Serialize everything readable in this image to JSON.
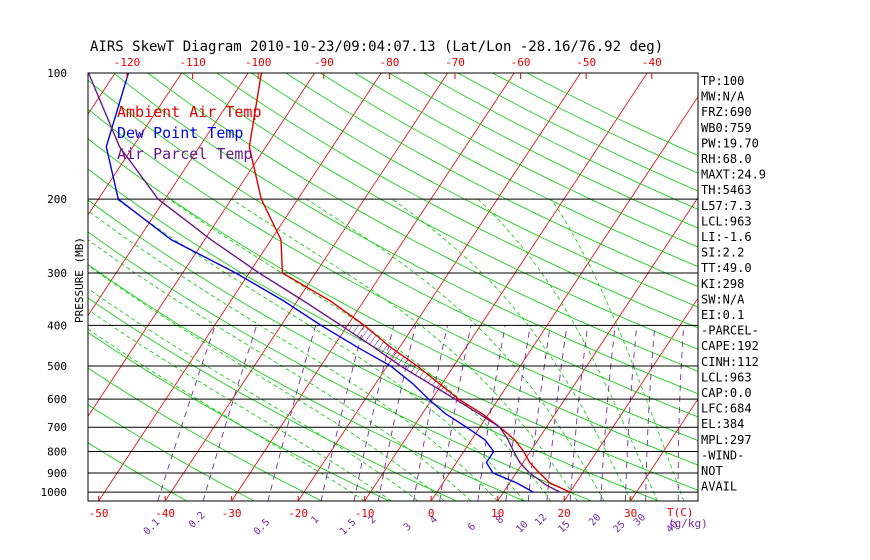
{
  "title": "AIRS SkewT Diagram 2010-10-23/09:04:07.13 (Lat/Lon -28.16/76.92 deg)",
  "legend": [
    {
      "label": "Ambient Air Temp",
      "color": "#e00000"
    },
    {
      "label": "Dew Point Temp",
      "color": "#0000e0"
    },
    {
      "label": "Air Parcel Temp",
      "color": "#6a1a8a"
    }
  ],
  "colors": {
    "ambient": "#e00000",
    "dewpoint": "#0000e0",
    "parcel": "#6a1a8a",
    "isotherm": "#e00000",
    "dry_adiabat": "#00cc00",
    "moist_adiabat": "#00cc00",
    "mixing_ratio": "#7a2aa0",
    "axis": "#000000",
    "tick_top": "#e00000",
    "tick_bottom": "#e00000",
    "tick_mixing": "#7a2aa0"
  },
  "chart_data": {
    "type": "line",
    "title": "AIRS SkewT Diagram 2010-10-23/09:04:07.13 (Lat/Lon -28.16/76.92 deg)",
    "ylabel": "PRESSURE (MB)",
    "xlabel_bottom_unit": "T(C)",
    "mixing_unit": "(g/kg)",
    "y_scale": "log",
    "ylim": [
      1050,
      100
    ],
    "pressure_ticks": [
      100,
      200,
      300,
      400,
      500,
      600,
      700,
      800,
      900,
      1000
    ],
    "bottom_temp_ticks": [
      "-50",
      "-40",
      "-30",
      "-20",
      "-10",
      "0",
      "10",
      "20",
      "30"
    ],
    "top_temp_ticks": [
      "-120",
      "-110",
      "-100",
      "-90",
      "-80",
      "-70",
      "-60",
      "-50",
      "-40"
    ],
    "mixing_ratio_ticks": [
      "0.1",
      "0.2",
      "0.5",
      "1",
      "1.5",
      "2",
      "3",
      "4",
      "6",
      "8",
      "10",
      "12",
      "15",
      "20",
      "25",
      "30",
      "40"
    ],
    "series": [
      {
        "name": "Ambient Air Temp",
        "key": "ambient",
        "points": [
          [
            1000,
            20.0
          ],
          [
            950,
            16.0
          ],
          [
            900,
            13.5
          ],
          [
            850,
            11.0
          ],
          [
            800,
            9.0
          ],
          [
            750,
            6.5
          ],
          [
            700,
            3.0
          ],
          [
            650,
            -1.0
          ],
          [
            600,
            -6.0
          ],
          [
            550,
            -10.5
          ],
          [
            500,
            -15.5
          ],
          [
            450,
            -21.5
          ],
          [
            400,
            -27.5
          ],
          [
            350,
            -35.0
          ],
          [
            300,
            -45.0
          ],
          [
            250,
            -48.5
          ],
          [
            200,
            -55.5
          ],
          [
            150,
            -62.5
          ],
          [
            100,
            -68.0
          ]
        ]
      },
      {
        "name": "Dew Point Temp",
        "key": "dewpoint",
        "points": [
          [
            1000,
            14.5
          ],
          [
            950,
            11.0
          ],
          [
            900,
            6.5
          ],
          [
            850,
            4.5
          ],
          [
            800,
            4.5
          ],
          [
            750,
            2.0
          ],
          [
            700,
            -2.0
          ],
          [
            650,
            -6.5
          ],
          [
            600,
            -10.5
          ],
          [
            550,
            -14.5
          ],
          [
            500,
            -19.5
          ],
          [
            450,
            -26.5
          ],
          [
            400,
            -34.0
          ],
          [
            350,
            -42.0
          ],
          [
            300,
            -52.0
          ],
          [
            250,
            -65.0
          ],
          [
            200,
            -77.0
          ],
          [
            150,
            -84.0
          ],
          [
            100,
            -88.0
          ]
        ]
      },
      {
        "name": "Air Parcel Temp",
        "key": "parcel",
        "points": [
          [
            1000,
            18.5
          ],
          [
            963,
            15.8
          ],
          [
            900,
            12.0
          ],
          [
            850,
            9.5
          ],
          [
            800,
            7.5
          ],
          [
            750,
            5.5
          ],
          [
            700,
            3.0
          ],
          [
            650,
            -1.5
          ],
          [
            600,
            -6.5
          ],
          [
            550,
            -12.0
          ],
          [
            500,
            -18.0
          ],
          [
            450,
            -24.0
          ],
          [
            400,
            -31.0
          ],
          [
            350,
            -39.0
          ],
          [
            300,
            -48.5
          ],
          [
            250,
            -59.0
          ],
          [
            200,
            -71.0
          ],
          [
            150,
            -82.0
          ],
          [
            100,
            -94.0
          ]
        ]
      }
    ],
    "cape_shading": {
      "from_pressure": 684,
      "to_pressure": 400,
      "pattern": "hatched"
    }
  },
  "indices": [
    "TP:100",
    "MW:N/A",
    "FRZ:690",
    "WB0:759",
    "PW:19.70",
    "RH:68.0",
    "MAXT:24.9",
    "TH:5463",
    "L57:7.3",
    "LCL:963",
    "LI:-1.6",
    "SI:2.2",
    "TT:49.0",
    "KI:298",
    "SW:N/A",
    "EI:0.1",
    "-PARCEL-",
    "CAPE:192",
    "CINH:112",
    "LCL:963",
    "CAP:0.0",
    "LFC:684",
    "EL:384",
    "MPL:297",
    "-WIND-",
    "NOT",
    "AVAIL"
  ]
}
